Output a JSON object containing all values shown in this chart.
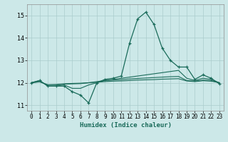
{
  "title": "",
  "xlabel": "Humidex (Indice chaleur)",
  "ylabel": "",
  "background_color": "#cce8e8",
  "grid_color": "#aacccc",
  "line_color": "#1a6b5a",
  "xlim": [
    -0.5,
    23.5
  ],
  "ylim": [
    10.75,
    15.5
  ],
  "yticks": [
    11,
    12,
    13,
    14,
    15
  ],
  "xticks": [
    0,
    1,
    2,
    3,
    4,
    5,
    6,
    7,
    8,
    9,
    10,
    11,
    12,
    13,
    14,
    15,
    16,
    17,
    18,
    19,
    20,
    21,
    22,
    23
  ],
  "series": [
    [
      12.0,
      12.1,
      11.85,
      11.85,
      11.85,
      11.6,
      11.45,
      11.1,
      12.0,
      12.15,
      12.2,
      12.3,
      13.75,
      14.85,
      15.15,
      14.6,
      13.55,
      13.0,
      12.7,
      12.7,
      12.15,
      12.35,
      12.2,
      11.95
    ],
    [
      12.0,
      12.1,
      11.85,
      11.85,
      11.9,
      11.75,
      11.75,
      11.9,
      12.0,
      12.1,
      12.15,
      12.2,
      12.25,
      12.3,
      12.35,
      12.4,
      12.45,
      12.5,
      12.55,
      12.2,
      12.1,
      12.2,
      12.15,
      12.0
    ],
    [
      12.0,
      12.05,
      11.9,
      11.9,
      11.94,
      11.95,
      11.96,
      12.0,
      12.05,
      12.1,
      12.12,
      12.14,
      12.17,
      12.19,
      12.21,
      12.23,
      12.25,
      12.27,
      12.28,
      12.1,
      12.07,
      12.12,
      12.1,
      12.0
    ],
    [
      12.0,
      12.04,
      11.91,
      11.92,
      11.95,
      11.97,
      11.98,
      12.0,
      12.02,
      12.05,
      12.07,
      12.08,
      12.1,
      12.12,
      12.13,
      12.14,
      12.16,
      12.17,
      12.18,
      12.08,
      12.05,
      12.09,
      12.07,
      12.0
    ]
  ]
}
